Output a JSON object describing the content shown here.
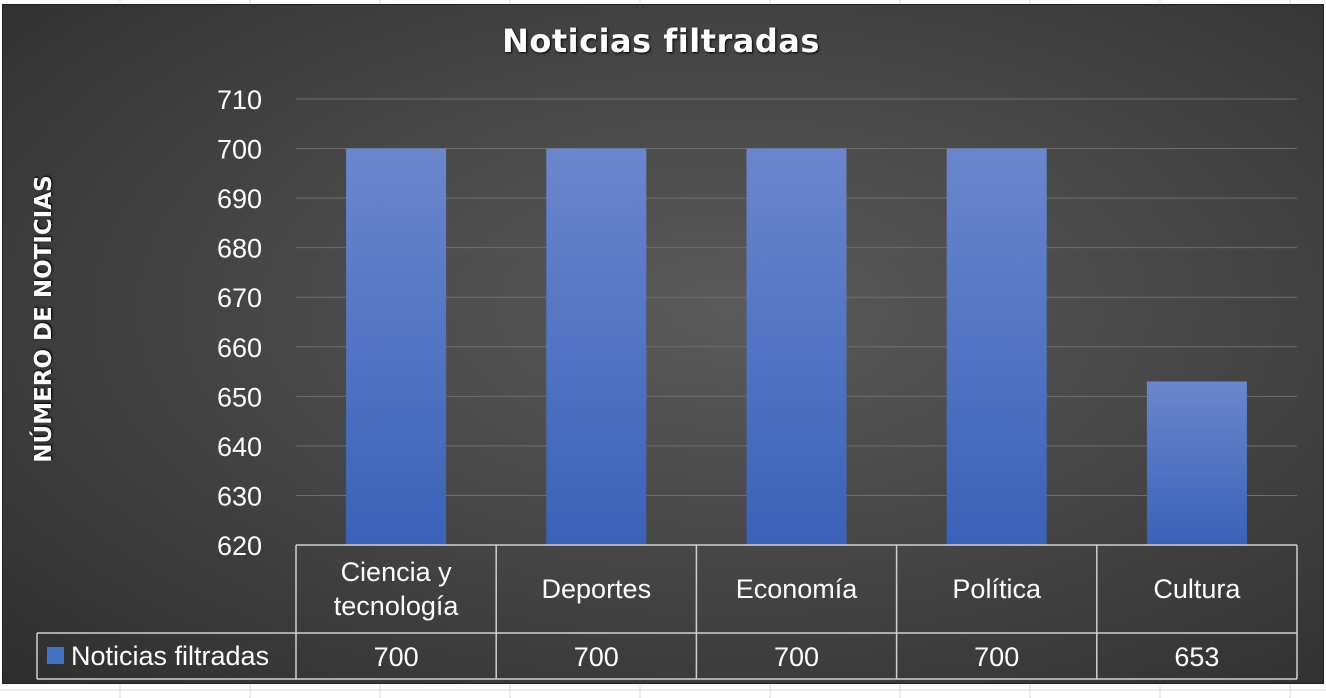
{
  "chart_data": {
    "type": "bar",
    "title": "Noticias filtradas",
    "ylabel": "NÚMERO DE NOTICIAS",
    "xlabel": "",
    "categories": [
      [
        "Ciencia y",
        "tecnología"
      ],
      [
        "Deportes"
      ],
      [
        "Economía"
      ],
      [
        "Política"
      ],
      [
        "Cultura"
      ]
    ],
    "series": [
      {
        "name": "Noticias filtradas",
        "values": [
          700,
          700,
          700,
          700,
          653
        ],
        "color": "#4472C4"
      }
    ],
    "data_table_values": [
      "700",
      "700",
      "700",
      "700",
      "653"
    ],
    "ylim": [
      620,
      710
    ],
    "yticks": [
      "620",
      "630",
      "640",
      "650",
      "660",
      "670",
      "680",
      "690",
      "700",
      "710"
    ],
    "grid": true,
    "legend": "data-table"
  }
}
